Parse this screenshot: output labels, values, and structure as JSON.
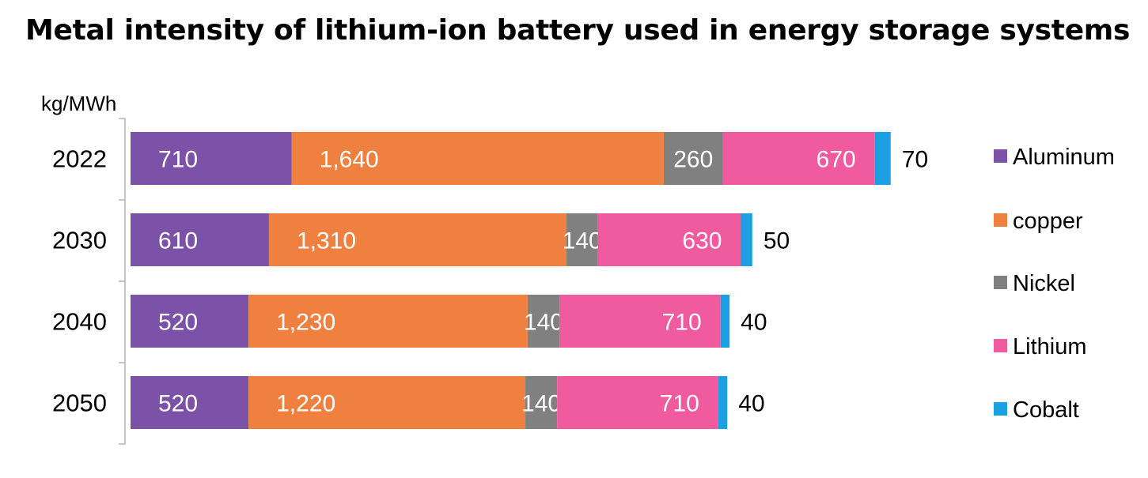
{
  "chart_data": {
    "type": "bar",
    "orientation": "horizontal",
    "stacked": true,
    "title": "Metal intensity of lithium-ion battery used in energy storage systems",
    "unit_label": "kg/MWh",
    "categories": [
      "2022",
      "2030",
      "2040",
      "2050"
    ],
    "series": [
      {
        "name": "Aluminum",
        "color": "#7B52A8",
        "values": [
          710,
          610,
          520,
          520
        ],
        "labels": [
          "710",
          "610",
          "520",
          "520"
        ]
      },
      {
        "name": "copper",
        "color": "#F08040",
        "values": [
          1640,
          1310,
          1230,
          1220
        ],
        "labels": [
          "1,640",
          "1,310",
          "1,230",
          "1,220"
        ]
      },
      {
        "name": "Nickel",
        "color": "#808080",
        "values": [
          260,
          140,
          140,
          140
        ],
        "labels": [
          "260",
          "140",
          "140",
          "140"
        ]
      },
      {
        "name": "Lithium",
        "color": "#F05A9E",
        "values": [
          670,
          630,
          710,
          710
        ],
        "labels": [
          "670",
          "630",
          "710",
          "710"
        ]
      },
      {
        "name": "Cobalt",
        "color": "#1BA1E2",
        "values": [
          70,
          50,
          40,
          40
        ],
        "labels": [
          "70",
          "50",
          "40",
          "40"
        ]
      }
    ],
    "legend_position": "right",
    "grid": false
  }
}
